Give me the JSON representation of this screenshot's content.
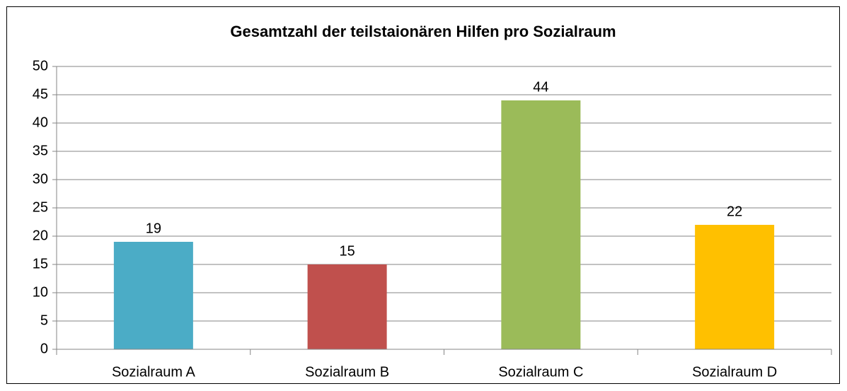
{
  "chart_data": {
    "type": "bar",
    "title": "Gesamtzahl der teilstaionären Hilfen pro Sozialraum",
    "categories": [
      "Sozialraum A",
      "Sozialraum B",
      "Sozialraum C",
      "Sozialraum D"
    ],
    "values": [
      19,
      15,
      44,
      22
    ],
    "colors": [
      "#4bacc6",
      "#c0504d",
      "#9bbb59",
      "#ffc000"
    ],
    "ylim": [
      0,
      50
    ],
    "yticks": [
      0,
      5,
      10,
      15,
      20,
      25,
      30,
      35,
      40,
      45,
      50
    ],
    "grid": true
  }
}
